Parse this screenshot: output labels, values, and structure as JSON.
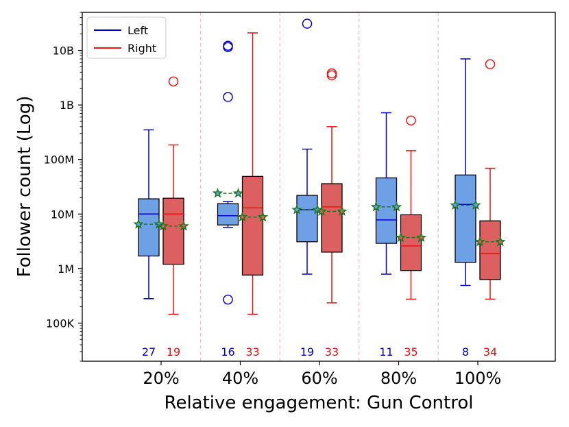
{
  "chart_data": {
    "type": "box",
    "title": "",
    "xlabel": "Relative engagement: Gun Control",
    "ylabel": "Follower count (Log)",
    "yscale": "log",
    "ylim": [
      20000,
      50000000000
    ],
    "yticks": [
      {
        "value": 100000,
        "label": "100K"
      },
      {
        "value": 1000000,
        "label": "1M"
      },
      {
        "value": 10000000,
        "label": "10M"
      },
      {
        "value": 100000000,
        "label": "100M"
      },
      {
        "value": 1000000000,
        "label": "1B"
      },
      {
        "value": 10000000000,
        "label": "10B"
      }
    ],
    "categories": [
      "20%",
      "40%",
      "60%",
      "80%",
      "100%"
    ],
    "legend": {
      "position": "top-left",
      "entries": [
        {
          "name": "Left",
          "color": "#0000cc"
        },
        {
          "name": "Right",
          "color": "#ee1111"
        }
      ]
    },
    "colors": {
      "left_line": "#0000cc",
      "left_fill": "#6ea0e6",
      "right_line": "#ee1111",
      "right_fill": "#dd6060",
      "mean_marker": "#1a7a1a",
      "divider": "#f5b6c8"
    },
    "series": [
      {
        "name": "Left",
        "boxes": [
          {
            "q1": 1700000,
            "median": 10000000,
            "q3": 19000000,
            "whisker_low": 280000,
            "whisker_high": 350000000,
            "mean": 6500000,
            "outliers": [],
            "count": "27"
          },
          {
            "q1": 6300000,
            "median": 9300000,
            "q3": 15500000,
            "whisker_low": 5700000,
            "whisker_high": 17000000,
            "mean": 24000000,
            "outliers": [
              270000,
              1400000000,
              11500000000,
              12200000000
            ],
            "count": "16"
          },
          {
            "q1": 3100000,
            "median": 12000000,
            "q3": 22000000,
            "whisker_low": 790000,
            "whisker_high": 155000000,
            "mean": 12000000,
            "outliers": [
              31000000000
            ],
            "count": "19"
          },
          {
            "q1": 2900000,
            "median": 7800000,
            "q3": 46000000,
            "whisker_low": 790000,
            "whisker_high": 720000000,
            "mean": 13500000,
            "outliers": [],
            "count": "11"
          },
          {
            "q1": 1300000,
            "median": 15000000,
            "q3": 52000000,
            "whisker_low": 490000,
            "whisker_high": 7000000000,
            "mean": 14500000,
            "outliers": [],
            "count": "8"
          }
        ]
      },
      {
        "name": "Right",
        "boxes": [
          {
            "q1": 1200000,
            "median": 10000000,
            "q3": 19500000,
            "whisker_low": 145000,
            "whisker_high": 185000000,
            "mean": 6000000,
            "outliers": [
              2700000000
            ],
            "count": "19"
          },
          {
            "q1": 760000,
            "median": 13000000,
            "q3": 49000000,
            "whisker_low": 145000,
            "whisker_high": 21000000000,
            "mean": 8800000,
            "outliers": [],
            "count": "33"
          },
          {
            "q1": 2000000,
            "median": 13500000,
            "q3": 36000000,
            "whisker_low": 235000,
            "whisker_high": 400000000,
            "mean": 11200000,
            "outliers": [
              3500000000,
              3800000000
            ],
            "count": "33"
          },
          {
            "q1": 920000,
            "median": 2600000,
            "q3": 9700000,
            "whisker_low": 275000,
            "whisker_high": 145000000,
            "mean": 3700000,
            "outliers": [
              520000000
            ],
            "count": "35"
          },
          {
            "q1": 630000,
            "median": 1900000,
            "q3": 7500000,
            "whisker_low": 275000,
            "whisker_high": 69000000,
            "mean": 3100000,
            "outliers": [
              5600000000
            ],
            "count": "34"
          }
        ]
      }
    ]
  }
}
